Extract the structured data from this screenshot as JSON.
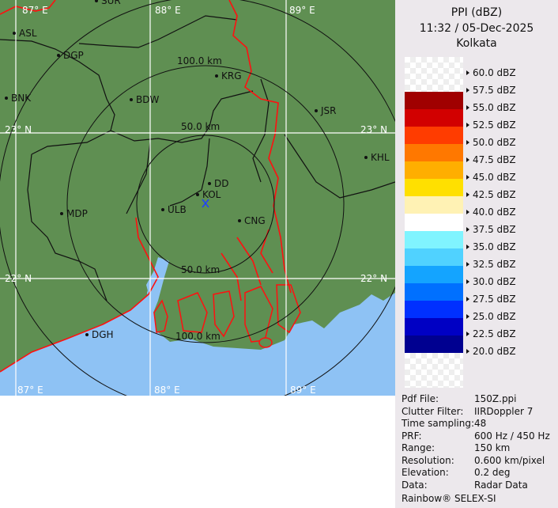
{
  "header": {
    "title": "PPI (dBZ)",
    "datetime": "11:32 / 05-Dec-2025",
    "station": "Kolkata"
  },
  "legend": [
    {
      "label": "60.0 dBZ",
      "color": null
    },
    {
      "label": "57.5 dBZ",
      "color": "#a00000"
    },
    {
      "label": "55.0 dBZ",
      "color": "#d20000"
    },
    {
      "label": "52.5 dBZ",
      "color": "#ff3c00"
    },
    {
      "label": "50.0 dBZ",
      "color": "#ff7800"
    },
    {
      "label": "47.5 dBZ",
      "color": "#ffae00"
    },
    {
      "label": "45.0 dBZ",
      "color": "#ffe000"
    },
    {
      "label": "42.5 dBZ",
      "color": "#fff2b4"
    },
    {
      "label": "40.0 dBZ",
      "color": "#ffffff"
    },
    {
      "label": "37.5 dBZ",
      "color": "#80f4ff"
    },
    {
      "label": "35.0 dBZ",
      "color": "#50d2ff"
    },
    {
      "label": "32.5 dBZ",
      "color": "#14a4ff"
    },
    {
      "label": "30.0 dBZ",
      "color": "#0070ff"
    },
    {
      "label": "27.5 dBZ",
      "color": "#0030ff"
    },
    {
      "label": "25.0 dBZ",
      "color": "#0000c4"
    },
    {
      "label": "22.5 dBZ",
      "color": "#000090"
    },
    {
      "label": "20.0 dBZ",
      "color": null
    }
  ],
  "info": [
    {
      "key": "Pdf File:",
      "value": "150Z.ppi"
    },
    {
      "key": "Clutter Filter:",
      "value": "IIRDoppler 7"
    },
    {
      "key": "Time sampling:",
      "value": "48"
    },
    {
      "key": "PRF:",
      "value": "600 Hz / 450 Hz"
    },
    {
      "key": "Range:",
      "value": "150 km"
    },
    {
      "key": "Resolution:",
      "value": "0.600 km/pixel"
    },
    {
      "key": "Elevation:",
      "value": "0.2 deg"
    },
    {
      "key": "Data:",
      "value": "Radar Data"
    }
  ],
  "footer": "Rainbow® SELEX-SI",
  "map": {
    "colors": {
      "land": "#5f8f52",
      "sea": "#8ec2f4",
      "border": "#ff1010",
      "grid": "#ffffff"
    },
    "lon_labels_top": [
      "87° E",
      "88° E",
      "89° E"
    ],
    "lon_labels_bottom": [
      "87° E",
      "88° E",
      "89° E"
    ],
    "lat_labels_left": [
      "23° N",
      "22° N"
    ],
    "lat_labels_right": [
      "23° N",
      "22° N"
    ],
    "range_labels": [
      "100.0 km",
      "50.0 km",
      "50.0 km",
      "100.0 km"
    ],
    "cities": [
      "SUR",
      "ASL",
      "DGP",
      "BNK",
      "BDW",
      "KRG",
      "JSR",
      "KHL",
      "DD",
      "KOL",
      "ULB",
      "CNG",
      "MDP",
      "DGH"
    ]
  }
}
